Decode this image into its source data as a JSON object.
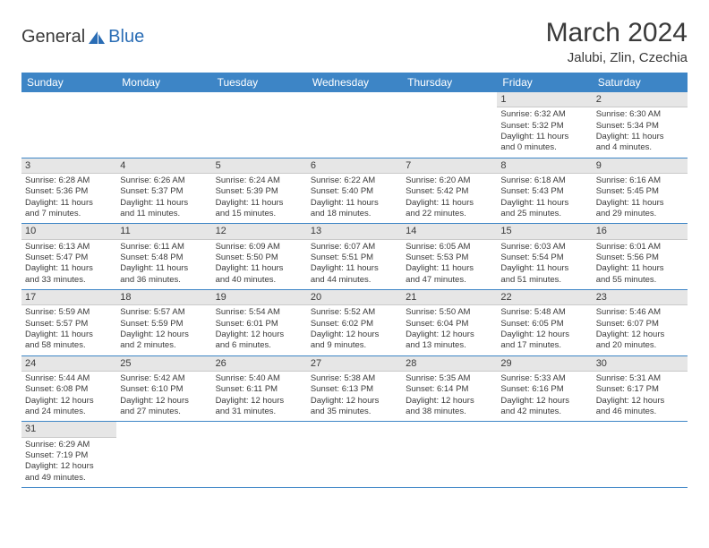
{
  "logo": {
    "part1": "General",
    "part2": "Blue"
  },
  "title": "March 2024",
  "location": "Jalubi, Zlin, Czechia",
  "colors": {
    "header_bg": "#3d85c6",
    "header_fg": "#ffffff",
    "daynum_bg": "#e6e6e6",
    "row_border": "#3d85c6",
    "text": "#3a3a3a",
    "logo_accent": "#2a6db5"
  },
  "day_headers": [
    "Sunday",
    "Monday",
    "Tuesday",
    "Wednesday",
    "Thursday",
    "Friday",
    "Saturday"
  ],
  "weeks": [
    [
      null,
      null,
      null,
      null,
      null,
      {
        "n": "1",
        "sr": "Sunrise: 6:32 AM",
        "ss": "Sunset: 5:32 PM",
        "d1": "Daylight: 11 hours",
        "d2": "and 0 minutes."
      },
      {
        "n": "2",
        "sr": "Sunrise: 6:30 AM",
        "ss": "Sunset: 5:34 PM",
        "d1": "Daylight: 11 hours",
        "d2": "and 4 minutes."
      }
    ],
    [
      {
        "n": "3",
        "sr": "Sunrise: 6:28 AM",
        "ss": "Sunset: 5:36 PM",
        "d1": "Daylight: 11 hours",
        "d2": "and 7 minutes."
      },
      {
        "n": "4",
        "sr": "Sunrise: 6:26 AM",
        "ss": "Sunset: 5:37 PM",
        "d1": "Daylight: 11 hours",
        "d2": "and 11 minutes."
      },
      {
        "n": "5",
        "sr": "Sunrise: 6:24 AM",
        "ss": "Sunset: 5:39 PM",
        "d1": "Daylight: 11 hours",
        "d2": "and 15 minutes."
      },
      {
        "n": "6",
        "sr": "Sunrise: 6:22 AM",
        "ss": "Sunset: 5:40 PM",
        "d1": "Daylight: 11 hours",
        "d2": "and 18 minutes."
      },
      {
        "n": "7",
        "sr": "Sunrise: 6:20 AM",
        "ss": "Sunset: 5:42 PM",
        "d1": "Daylight: 11 hours",
        "d2": "and 22 minutes."
      },
      {
        "n": "8",
        "sr": "Sunrise: 6:18 AM",
        "ss": "Sunset: 5:43 PM",
        "d1": "Daylight: 11 hours",
        "d2": "and 25 minutes."
      },
      {
        "n": "9",
        "sr": "Sunrise: 6:16 AM",
        "ss": "Sunset: 5:45 PM",
        "d1": "Daylight: 11 hours",
        "d2": "and 29 minutes."
      }
    ],
    [
      {
        "n": "10",
        "sr": "Sunrise: 6:13 AM",
        "ss": "Sunset: 5:47 PM",
        "d1": "Daylight: 11 hours",
        "d2": "and 33 minutes."
      },
      {
        "n": "11",
        "sr": "Sunrise: 6:11 AM",
        "ss": "Sunset: 5:48 PM",
        "d1": "Daylight: 11 hours",
        "d2": "and 36 minutes."
      },
      {
        "n": "12",
        "sr": "Sunrise: 6:09 AM",
        "ss": "Sunset: 5:50 PM",
        "d1": "Daylight: 11 hours",
        "d2": "and 40 minutes."
      },
      {
        "n": "13",
        "sr": "Sunrise: 6:07 AM",
        "ss": "Sunset: 5:51 PM",
        "d1": "Daylight: 11 hours",
        "d2": "and 44 minutes."
      },
      {
        "n": "14",
        "sr": "Sunrise: 6:05 AM",
        "ss": "Sunset: 5:53 PM",
        "d1": "Daylight: 11 hours",
        "d2": "and 47 minutes."
      },
      {
        "n": "15",
        "sr": "Sunrise: 6:03 AM",
        "ss": "Sunset: 5:54 PM",
        "d1": "Daylight: 11 hours",
        "d2": "and 51 minutes."
      },
      {
        "n": "16",
        "sr": "Sunrise: 6:01 AM",
        "ss": "Sunset: 5:56 PM",
        "d1": "Daylight: 11 hours",
        "d2": "and 55 minutes."
      }
    ],
    [
      {
        "n": "17",
        "sr": "Sunrise: 5:59 AM",
        "ss": "Sunset: 5:57 PM",
        "d1": "Daylight: 11 hours",
        "d2": "and 58 minutes."
      },
      {
        "n": "18",
        "sr": "Sunrise: 5:57 AM",
        "ss": "Sunset: 5:59 PM",
        "d1": "Daylight: 12 hours",
        "d2": "and 2 minutes."
      },
      {
        "n": "19",
        "sr": "Sunrise: 5:54 AM",
        "ss": "Sunset: 6:01 PM",
        "d1": "Daylight: 12 hours",
        "d2": "and 6 minutes."
      },
      {
        "n": "20",
        "sr": "Sunrise: 5:52 AM",
        "ss": "Sunset: 6:02 PM",
        "d1": "Daylight: 12 hours",
        "d2": "and 9 minutes."
      },
      {
        "n": "21",
        "sr": "Sunrise: 5:50 AM",
        "ss": "Sunset: 6:04 PM",
        "d1": "Daylight: 12 hours",
        "d2": "and 13 minutes."
      },
      {
        "n": "22",
        "sr": "Sunrise: 5:48 AM",
        "ss": "Sunset: 6:05 PM",
        "d1": "Daylight: 12 hours",
        "d2": "and 17 minutes."
      },
      {
        "n": "23",
        "sr": "Sunrise: 5:46 AM",
        "ss": "Sunset: 6:07 PM",
        "d1": "Daylight: 12 hours",
        "d2": "and 20 minutes."
      }
    ],
    [
      {
        "n": "24",
        "sr": "Sunrise: 5:44 AM",
        "ss": "Sunset: 6:08 PM",
        "d1": "Daylight: 12 hours",
        "d2": "and 24 minutes."
      },
      {
        "n": "25",
        "sr": "Sunrise: 5:42 AM",
        "ss": "Sunset: 6:10 PM",
        "d1": "Daylight: 12 hours",
        "d2": "and 27 minutes."
      },
      {
        "n": "26",
        "sr": "Sunrise: 5:40 AM",
        "ss": "Sunset: 6:11 PM",
        "d1": "Daylight: 12 hours",
        "d2": "and 31 minutes."
      },
      {
        "n": "27",
        "sr": "Sunrise: 5:38 AM",
        "ss": "Sunset: 6:13 PM",
        "d1": "Daylight: 12 hours",
        "d2": "and 35 minutes."
      },
      {
        "n": "28",
        "sr": "Sunrise: 5:35 AM",
        "ss": "Sunset: 6:14 PM",
        "d1": "Daylight: 12 hours",
        "d2": "and 38 minutes."
      },
      {
        "n": "29",
        "sr": "Sunrise: 5:33 AM",
        "ss": "Sunset: 6:16 PM",
        "d1": "Daylight: 12 hours",
        "d2": "and 42 minutes."
      },
      {
        "n": "30",
        "sr": "Sunrise: 5:31 AM",
        "ss": "Sunset: 6:17 PM",
        "d1": "Daylight: 12 hours",
        "d2": "and 46 minutes."
      }
    ],
    [
      {
        "n": "31",
        "sr": "Sunrise: 6:29 AM",
        "ss": "Sunset: 7:19 PM",
        "d1": "Daylight: 12 hours",
        "d2": "and 49 minutes."
      },
      null,
      null,
      null,
      null,
      null,
      null
    ]
  ]
}
